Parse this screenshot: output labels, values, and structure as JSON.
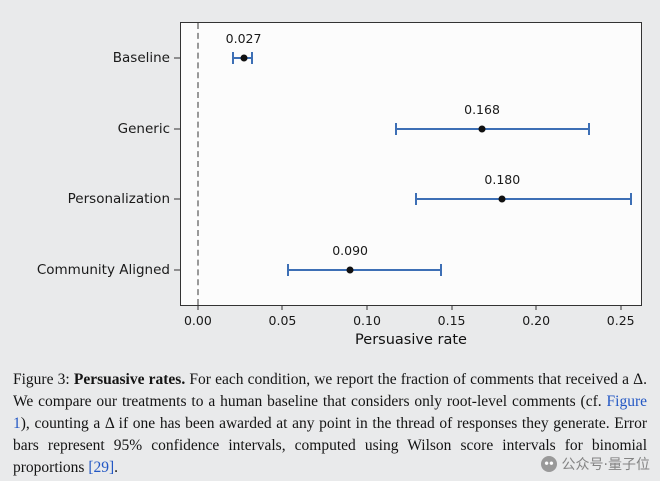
{
  "chart_data": {
    "type": "scatter",
    "subtype": "horizontal-error-bars",
    "categories": [
      "Baseline",
      "Generic",
      "Personalization",
      "Community Aligned"
    ],
    "values": [
      0.027,
      0.168,
      0.18,
      0.09
    ],
    "ci_low": [
      0.021,
      0.117,
      0.129,
      0.053
    ],
    "ci_high": [
      0.032,
      0.231,
      0.256,
      0.144
    ],
    "labels": [
      "0.027",
      "0.168",
      "0.180",
      "0.090"
    ],
    "xlabel": "Persuasive rate",
    "xticks": [
      0.0,
      0.05,
      0.1,
      0.15,
      0.2,
      0.25
    ],
    "xtick_labels": [
      "0.00",
      "0.05",
      "0.10",
      "0.15",
      "0.20",
      "0.25"
    ],
    "xlim": [
      -0.01,
      0.262
    ],
    "ref_line_x": 0.0,
    "grid": false,
    "legend": "none",
    "error_bar_meaning": "95% confidence interval (Wilson score)",
    "colors": {
      "error_bar": "#3d6fb5",
      "point": "#111111",
      "ref_line": "#999999"
    }
  },
  "caption": {
    "label": "Figure 3:",
    "title": "Persuasive rates.",
    "body1": "For each condition, we report the fraction of comments that received a Δ.  We compare our treatments to a human baseline that considers only root-level comments (cf.",
    "link_figure": "Figure 1",
    "body2": "), counting a Δ if one has been awarded at any point in the thread of responses they generate.  Error bars represent 95% confidence intervals, computed using Wilson score intervals for binomial proportions",
    "link_ref": "[29]",
    "body3": "."
  },
  "watermark": {
    "text": "公众号·量子位"
  }
}
